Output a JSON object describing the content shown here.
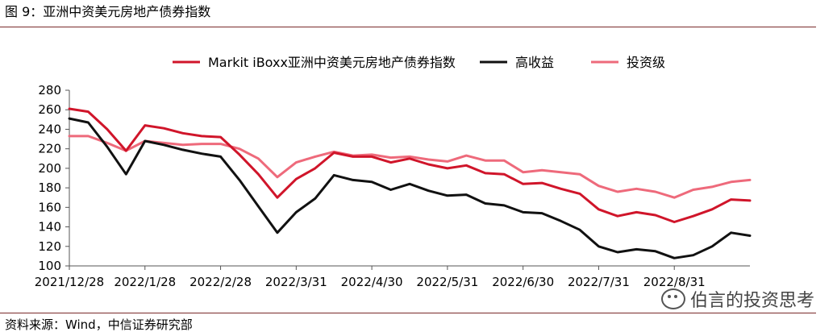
{
  "figure": {
    "title": "图 9：亚洲中资美元房地产债券指数",
    "source": "资料来源：Wind，中信证券研究部",
    "watermark": "伯言的投资思考"
  },
  "chart_data": {
    "type": "line",
    "ylim": [
      100,
      280
    ],
    "yticks": [
      100,
      120,
      140,
      160,
      180,
      200,
      220,
      240,
      260,
      280
    ],
    "xlabels": [
      "2021/12/28",
      "2022/1/28",
      "2022/2/28",
      "2022/3/31",
      "2022/4/30",
      "2022/5/31",
      "2022/6/30",
      "2022/7/31",
      "2022/8/31"
    ],
    "xlabel_positions": [
      0,
      4,
      8,
      12,
      16,
      20,
      24,
      28,
      32
    ],
    "legend_position": "top",
    "grid": false,
    "series": [
      {
        "name": "Markit iBoxx亚洲中资美元房地产债券指数",
        "color": "#d0152a",
        "values": [
          261,
          258,
          240,
          218,
          244,
          241,
          236,
          233,
          232,
          214,
          194,
          170,
          189,
          200,
          216,
          212,
          212,
          206,
          210,
          204,
          200,
          203,
          195,
          194,
          184,
          185,
          179,
          174,
          158,
          151,
          155,
          152,
          145,
          151,
          158,
          168,
          167
        ]
      },
      {
        "name": "高收益",
        "color": "#111111",
        "values": [
          251,
          247,
          222,
          194,
          228,
          224,
          219,
          215,
          212,
          188,
          161,
          134,
          155,
          169,
          193,
          188,
          186,
          178,
          184,
          177,
          172,
          173,
          164,
          162,
          155,
          154,
          146,
          137,
          120,
          114,
          117,
          115,
          108,
          111,
          120,
          134,
          131
        ]
      },
      {
        "name": "投资级",
        "color": "#ee6a7b",
        "values": [
          233,
          233,
          226,
          218,
          228,
          226,
          224,
          225,
          225,
          220,
          210,
          191,
          206,
          212,
          217,
          213,
          214,
          211,
          212,
          209,
          207,
          213,
          208,
          208,
          196,
          198,
          196,
          194,
          182,
          176,
          179,
          176,
          170,
          178,
          181,
          186,
          188
        ]
      }
    ]
  }
}
